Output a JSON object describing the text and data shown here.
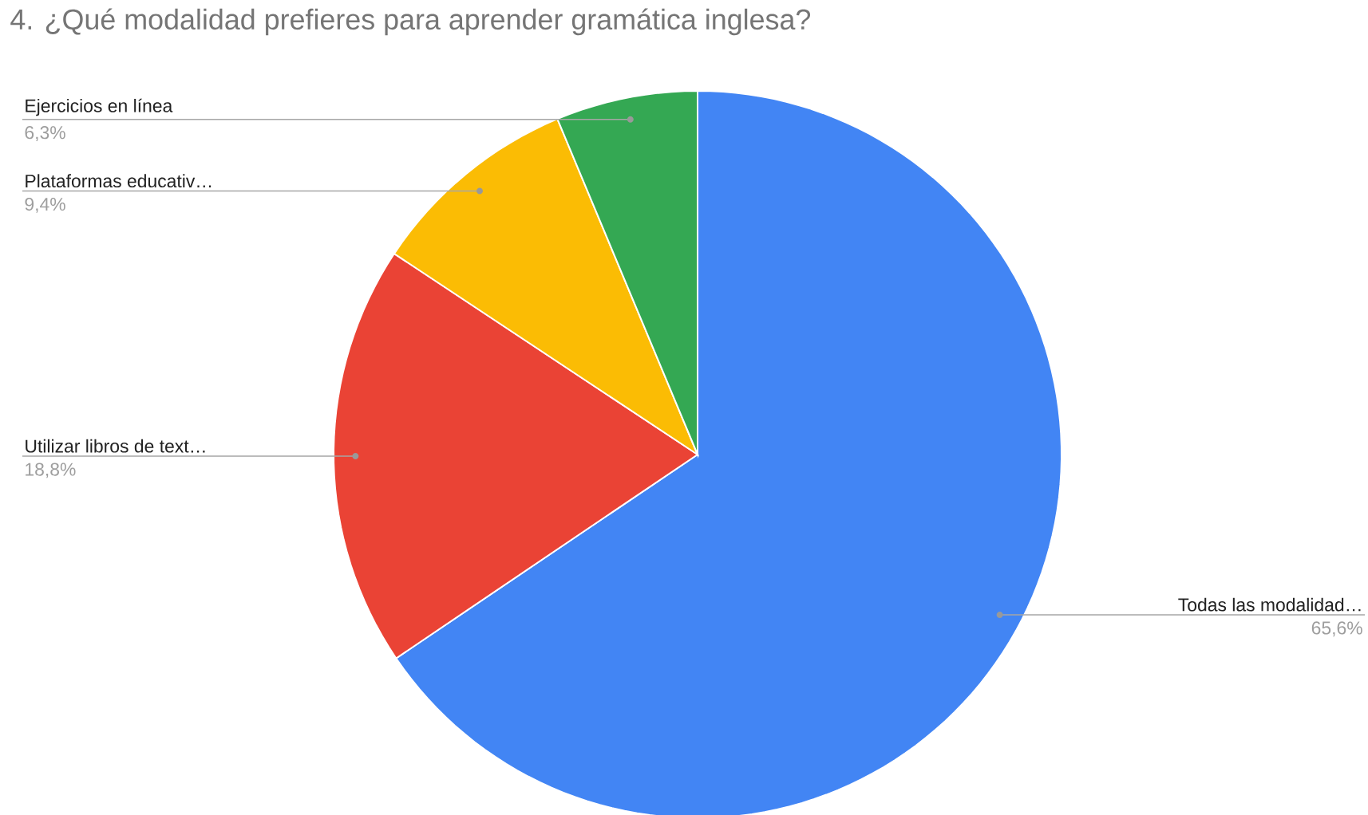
{
  "chart_data": {
    "type": "pie",
    "title": "4. ¿Qué modalidad prefieres para aprender gramática inglesa?",
    "categories": [
      "Todas las modalidad…",
      "Utilizar libros de text…",
      "Plataformas educativ…",
      "Ejercicios en línea"
    ],
    "values": [
      65.6,
      18.8,
      9.4,
      6.3
    ],
    "colors": [
      "#4285f4",
      "#ea4335",
      "#fbbc04",
      "#34a853"
    ],
    "value_labels": [
      "65,6%",
      "18,8%",
      "9,4%",
      "6,3%"
    ]
  }
}
